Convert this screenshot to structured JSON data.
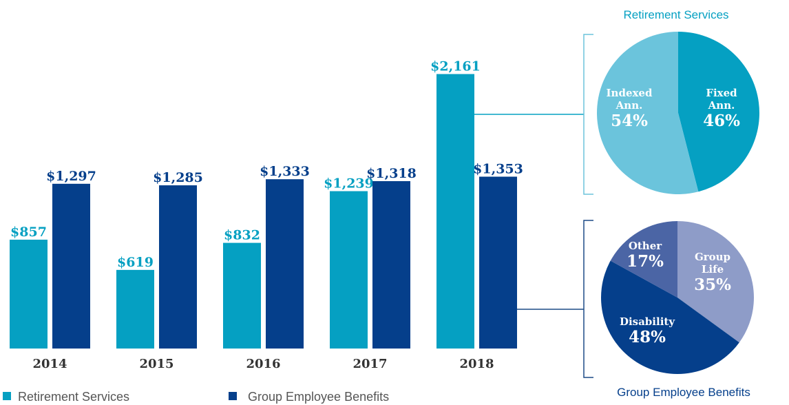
{
  "colors": {
    "retirement": "#05a0c2",
    "group": "#053f8b",
    "connector": "#05a0c2",
    "pie_ret_indexed": "#6bc4dc",
    "pie_ret_fixed": "#05a0c2",
    "pie_grp_group_life": "#8e9cc8",
    "pie_grp_disability": "#053f8b",
    "pie_grp_other": "#4b65a5",
    "group_bracket": "#1b4a85",
    "ret_bracket": "#6bc4dc"
  },
  "legend": {
    "retirement": "Retirement Services",
    "group": "Group Employee Benefits"
  },
  "chart_data": [
    {
      "type": "bar",
      "categories": [
        "2014",
        "2015",
        "2016",
        "2017",
        "2018"
      ],
      "series": [
        {
          "name": "Retirement Services",
          "values": [
            857,
            619,
            832,
            1239,
            2161
          ],
          "labels": [
            "$857",
            "$619",
            "$832",
            "$1,239",
            "$2,161"
          ]
        },
        {
          "name": "Group Employee Benefits",
          "values": [
            1297,
            1285,
            1333,
            1318,
            1353
          ],
          "labels": [
            "$1,297",
            "$1,285",
            "$1,333",
            "$1,318",
            "$1,353"
          ]
        }
      ],
      "ylim": [
        0,
        2300
      ],
      "grid": false,
      "legend_position": "bottom-left"
    },
    {
      "type": "pie",
      "title": "Retirement Services",
      "slices": [
        {
          "line1": "Indexed",
          "line2": "Ann.",
          "pct": "54%",
          "value": 54
        },
        {
          "line1": "Fixed",
          "line2": "Ann.",
          "pct": "46%",
          "value": 46
        }
      ]
    },
    {
      "type": "pie",
      "title": "Group Employee Benefits",
      "slices": [
        {
          "line1": "Group",
          "line2": "Life",
          "pct": "35%",
          "value": 35
        },
        {
          "line1": "Disability",
          "line2": "",
          "pct": "48%",
          "value": 48
        },
        {
          "line1": "Other",
          "line2": "",
          "pct": "17%",
          "value": 17
        }
      ]
    }
  ]
}
